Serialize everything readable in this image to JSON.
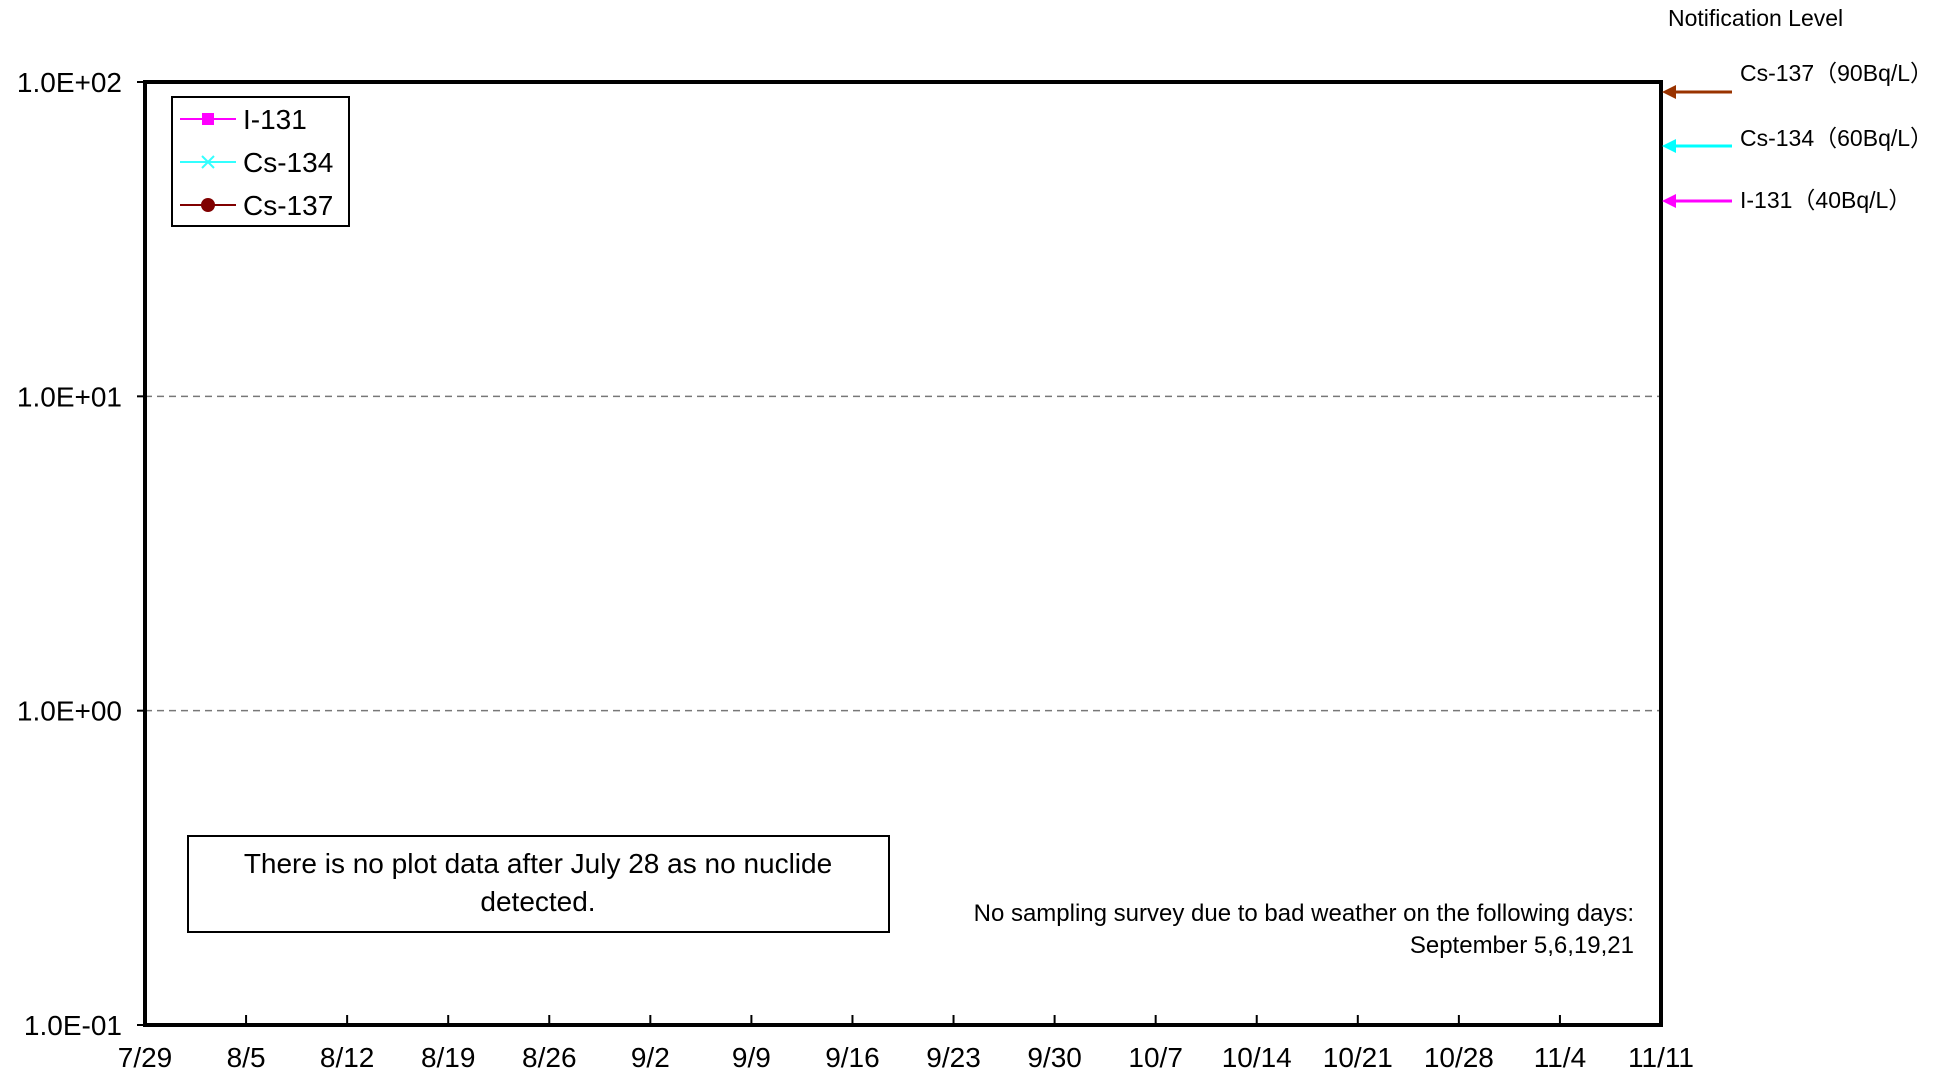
{
  "chart_data": {
    "type": "line",
    "title": "",
    "xlabel": "",
    "ylabel": "",
    "y_scale": "log",
    "ylim": [
      0.1,
      100
    ],
    "y_ticks": [
      {
        "value": 100,
        "label": "1.0E+02"
      },
      {
        "value": 10,
        "label": "1.0E+01"
      },
      {
        "value": 1,
        "label": "1.0E+00"
      },
      {
        "value": 0.1,
        "label": "1.0E-01"
      }
    ],
    "grid": "horizontal dashed",
    "x_ticks": [
      "7/29",
      "8/5",
      "8/12",
      "8/19",
      "8/26",
      "9/2",
      "9/9",
      "9/16",
      "9/23",
      "9/30",
      "10/7",
      "10/14",
      "10/21",
      "10/28",
      "11/4",
      "11/11"
    ],
    "series": [
      {
        "name": "I-131",
        "color": "#ff00ff",
        "marker": "square",
        "values": []
      },
      {
        "name": "Cs-134",
        "color": "#33ffff",
        "marker": "x",
        "values": []
      },
      {
        "name": "Cs-137",
        "color": "#800000",
        "marker": "circle",
        "values": []
      }
    ],
    "legend_position": "top-left",
    "notification_title": "Notification Level",
    "notification_levels": [
      {
        "label": "Cs-137（90Bq/L）",
        "value": 90,
        "color": "#993300"
      },
      {
        "label": "Cs-134（60Bq/L）",
        "value": 60,
        "color": "#00ffff"
      },
      {
        "label": "I-131（40Bq/L）",
        "value": 40,
        "color": "#ff00ff"
      }
    ],
    "annotations": {
      "no_data_line1": "There is no plot data after July 28 as no nuclide",
      "no_data_line2": "detected.",
      "weather_line1": "No sampling survey due to bad weather on the following days:",
      "weather_line2": "September 5,6,19,21"
    }
  }
}
